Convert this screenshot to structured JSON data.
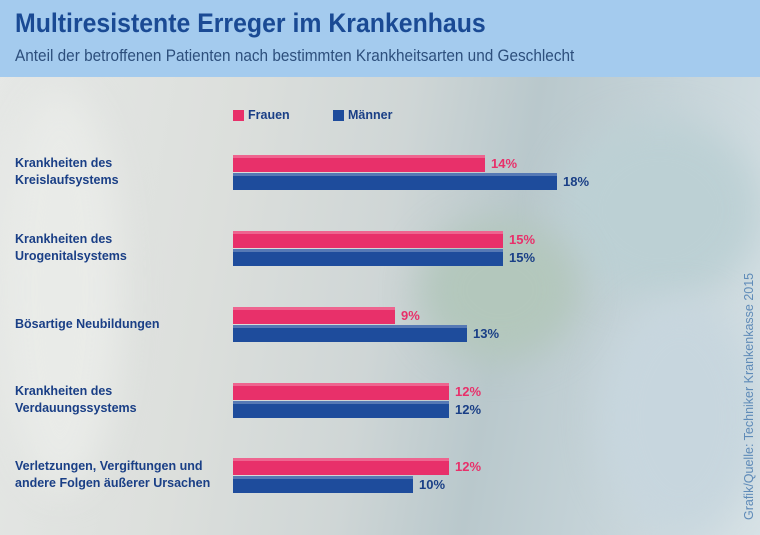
{
  "header": {
    "title": "Multiresistente Erreger im Krankenhaus",
    "subtitle": "Anteil der betroffenen Patienten nach bestimmten Krankheitsarten und Geschlecht"
  },
  "source": "Grafik/Quelle: Techniker Krankenkasse 2015",
  "chart_data": {
    "type": "bar",
    "orientation": "horizontal",
    "categories": [
      [
        "Krankheiten des",
        "Kreislaufsystems"
      ],
      [
        "Krankheiten des",
        "Urogenitalsystems"
      ],
      [
        "Bösartige Neubildungen"
      ],
      [
        "Krankheiten des",
        "Verdauungssystems"
      ],
      [
        "Verletzungen, Vergiftungen und",
        "andere Folgen äußerer Ursachen"
      ]
    ],
    "series": [
      {
        "name": "Frauen",
        "color": "#e8306a",
        "values": [
          14,
          15,
          9,
          12,
          12
        ]
      },
      {
        "name": "Männer",
        "color": "#1e4c9c",
        "values": [
          18,
          15,
          13,
          12,
          10
        ]
      }
    ],
    "unit": "%",
    "legend": "top",
    "grid": false
  }
}
